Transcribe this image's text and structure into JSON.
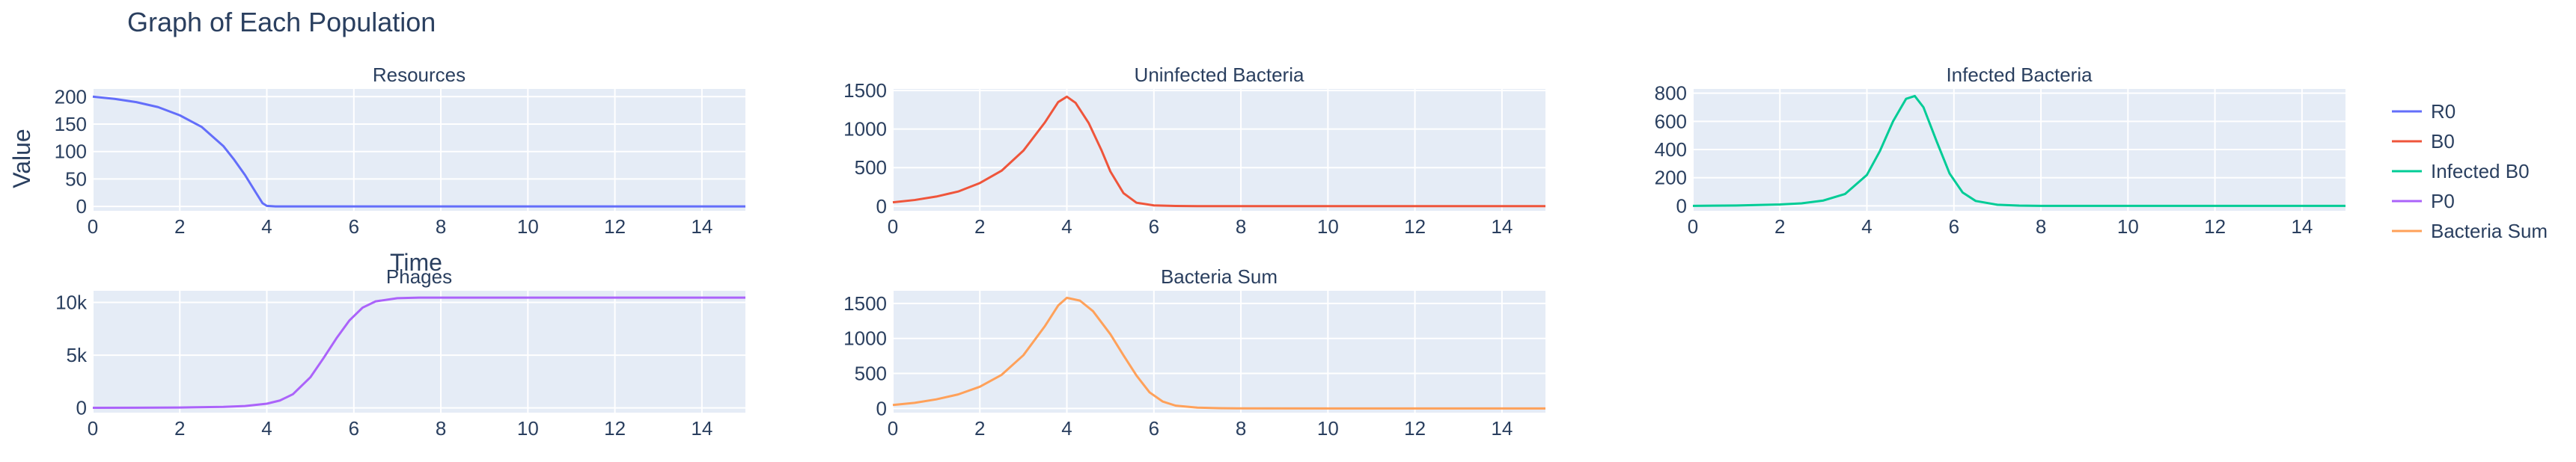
{
  "title": "Graph of Each Population",
  "xlabel": "Time",
  "ylabel": "Value",
  "legend": [
    {
      "name": "R0",
      "color": "#636efa"
    },
    {
      "name": "B0",
      "color": "#ef553b"
    },
    {
      "name": "Infected B0",
      "color": "#00cc96"
    },
    {
      "name": "P0",
      "color": "#ab63fa"
    },
    {
      "name": "Bacteria Sum",
      "color": "#ffa15a"
    }
  ],
  "chart_data": [
    {
      "type": "line",
      "title": "Resources",
      "series_name": "R0",
      "color": "#636efa",
      "xlim": [
        0,
        15
      ],
      "ylim": [
        -8,
        214
      ],
      "xticks": [
        0,
        2,
        4,
        6,
        8,
        10,
        12,
        14
      ],
      "yticks": [
        0,
        50,
        100,
        150,
        200
      ],
      "ytick_labels": [
        "0",
        "50",
        "100",
        "150",
        "200"
      ],
      "x": [
        0,
        0.5,
        1,
        1.5,
        2,
        2.5,
        3,
        3.25,
        3.5,
        3.75,
        3.9,
        4,
        4.2,
        5,
        6,
        8,
        10,
        12,
        15
      ],
      "y": [
        200,
        196,
        190,
        181,
        166,
        145,
        110,
        85,
        57,
        25,
        6,
        1,
        0,
        0,
        0,
        0,
        0,
        0,
        0
      ]
    },
    {
      "type": "line",
      "title": "Uninfected Bacteria",
      "series_name": "B0",
      "color": "#ef553b",
      "xlim": [
        0,
        15
      ],
      "ylim": [
        -60,
        1520
      ],
      "xticks": [
        0,
        2,
        4,
        6,
        8,
        10,
        12,
        14
      ],
      "yticks": [
        0,
        500,
        1000,
        1500
      ],
      "ytick_labels": [
        "0",
        "500",
        "1000",
        "1500"
      ],
      "x": [
        0,
        0.5,
        1,
        1.5,
        2,
        2.5,
        3,
        3.5,
        3.8,
        4,
        4.2,
        4.5,
        4.8,
        5,
        5.3,
        5.6,
        6,
        6.5,
        7,
        8,
        10,
        12,
        15
      ],
      "y": [
        50,
        80,
        125,
        190,
        300,
        460,
        720,
        1090,
        1350,
        1420,
        1340,
        1080,
        720,
        450,
        170,
        45,
        10,
        3,
        1,
        0,
        0,
        0,
        0
      ]
    },
    {
      "type": "line",
      "title": "Infected Bacteria",
      "series_name": "Infected B0",
      "color": "#00cc96",
      "xlim": [
        0,
        15
      ],
      "ylim": [
        -35,
        830
      ],
      "xticks": [
        0,
        2,
        4,
        6,
        8,
        10,
        12,
        14
      ],
      "yticks": [
        0,
        200,
        400,
        600,
        800
      ],
      "ytick_labels": [
        "0",
        "200",
        "400",
        "600",
        "800"
      ],
      "x": [
        0,
        1,
        2,
        2.5,
        3,
        3.5,
        4,
        4.3,
        4.6,
        4.9,
        5.1,
        5.3,
        5.6,
        5.9,
        6.2,
        6.5,
        7,
        7.5,
        8,
        10,
        12,
        15
      ],
      "y": [
        0,
        3,
        10,
        18,
        38,
        85,
        220,
        390,
        600,
        760,
        780,
        700,
        460,
        230,
        95,
        35,
        8,
        2,
        0,
        0,
        0,
        0
      ]
    },
    {
      "type": "line",
      "title": "Phages",
      "series_name": "P0",
      "color": "#ab63fa",
      "xlim": [
        0,
        15
      ],
      "ylim": [
        -450,
        11100
      ],
      "xticks": [
        0,
        2,
        4,
        6,
        8,
        10,
        12,
        14
      ],
      "yticks": [
        0,
        5000,
        10000
      ],
      "ytick_labels": [
        "0",
        "5k",
        "10k"
      ],
      "x": [
        0,
        1,
        2,
        3,
        3.5,
        4,
        4.3,
        4.6,
        5,
        5.3,
        5.6,
        5.9,
        6.2,
        6.5,
        7,
        7.5,
        8,
        10,
        12,
        15
      ],
      "y": [
        10,
        20,
        40,
        100,
        180,
        400,
        700,
        1300,
        2900,
        4700,
        6600,
        8300,
        9500,
        10100,
        10400,
        10450,
        10450,
        10450,
        10450,
        10450
      ]
    },
    {
      "type": "line",
      "title": "Bacteria Sum",
      "series_name": "Bacteria Sum",
      "color": "#ffa15a",
      "xlim": [
        0,
        15
      ],
      "ylim": [
        -60,
        1680
      ],
      "xticks": [
        0,
        2,
        4,
        6,
        8,
        10,
        12,
        14
      ],
      "yticks": [
        0,
        500,
        1000,
        1500
      ],
      "ytick_labels": [
        "0",
        "500",
        "1000",
        "1500"
      ],
      "x": [
        0,
        0.5,
        1,
        1.5,
        2,
        2.5,
        3,
        3.5,
        3.8,
        4,
        4.3,
        4.6,
        5,
        5.3,
        5.6,
        5.9,
        6.2,
        6.5,
        7,
        7.5,
        8,
        10,
        12,
        15
      ],
      "y": [
        50,
        80,
        130,
        200,
        310,
        480,
        760,
        1180,
        1470,
        1580,
        1540,
        1390,
        1060,
        760,
        470,
        230,
        100,
        40,
        12,
        4,
        1,
        0,
        0,
        0
      ]
    }
  ]
}
